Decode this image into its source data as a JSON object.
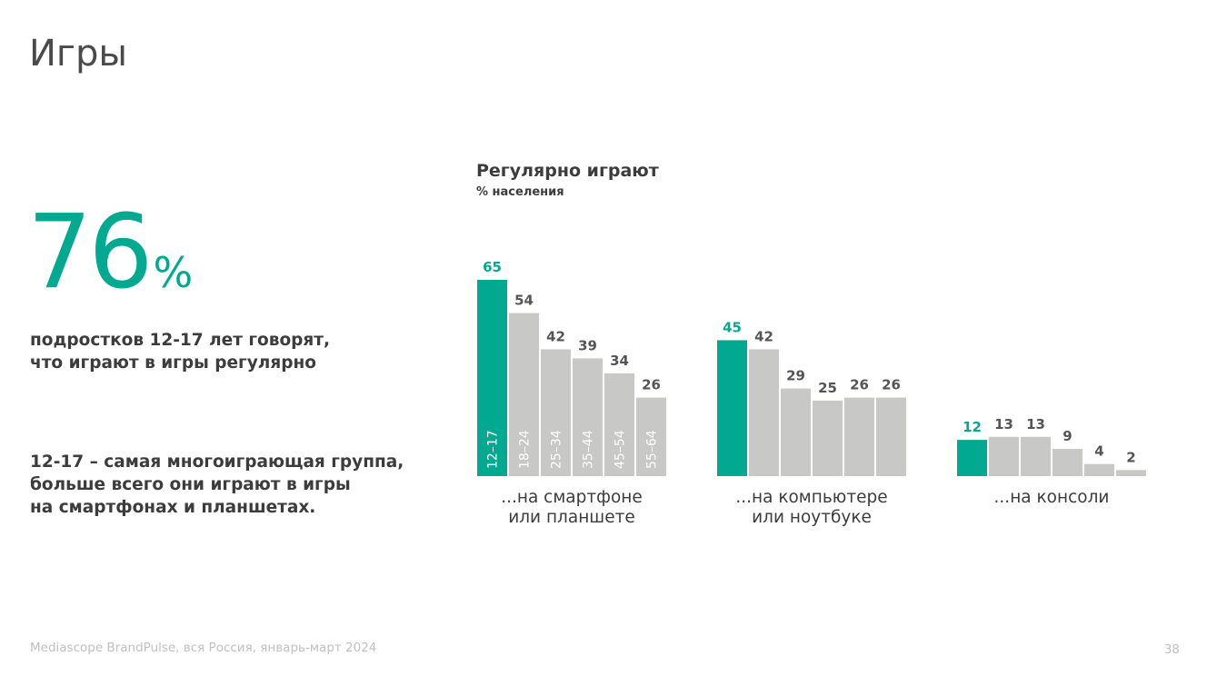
{
  "title": "Игры",
  "highlight": {
    "value": "76",
    "unit": "%"
  },
  "text1": [
    "подростков 12-17 лет говорят,",
    "что играют в игры регулярно"
  ],
  "text2": [
    "12-17 – самая многоиграющая группа,",
    "больше всего они играют в игры",
    "на смартфонах и планшетах."
  ],
  "footer": "Mediascope BrandPulse, вся Россия, январь-март 2024",
  "page_number": "38",
  "colors": {
    "accent": "#00a98f",
    "bar": "#c8c8c6",
    "value_text": "#555555"
  },
  "chart_data": {
    "type": "bar",
    "title": "Регулярно играют",
    "subtitle": "% населения",
    "ylabel": "% населения",
    "ylim": [
      0,
      65
    ],
    "categories": [
      "12–17",
      "18–24",
      "25–34",
      "35–44",
      "45–54",
      "55–64"
    ],
    "highlight_category": "12–17",
    "groups": [
      {
        "name": "...на смартфоне или планшете",
        "label_lines": [
          "...на смартфоне",
          "или планшете"
        ],
        "values": [
          65,
          54,
          42,
          39,
          34,
          26
        ],
        "show_categories": true
      },
      {
        "name": "...на компьютере или ноутбуке",
        "label_lines": [
          "...на компьютере",
          "или ноутбуке"
        ],
        "values": [
          45,
          42,
          29,
          25,
          26,
          26
        ],
        "show_categories": false
      },
      {
        "name": "...на консоли",
        "label_lines": [
          "...на консоли"
        ],
        "values": [
          12,
          13,
          13,
          9,
          4,
          2
        ],
        "show_categories": false
      }
    ]
  }
}
